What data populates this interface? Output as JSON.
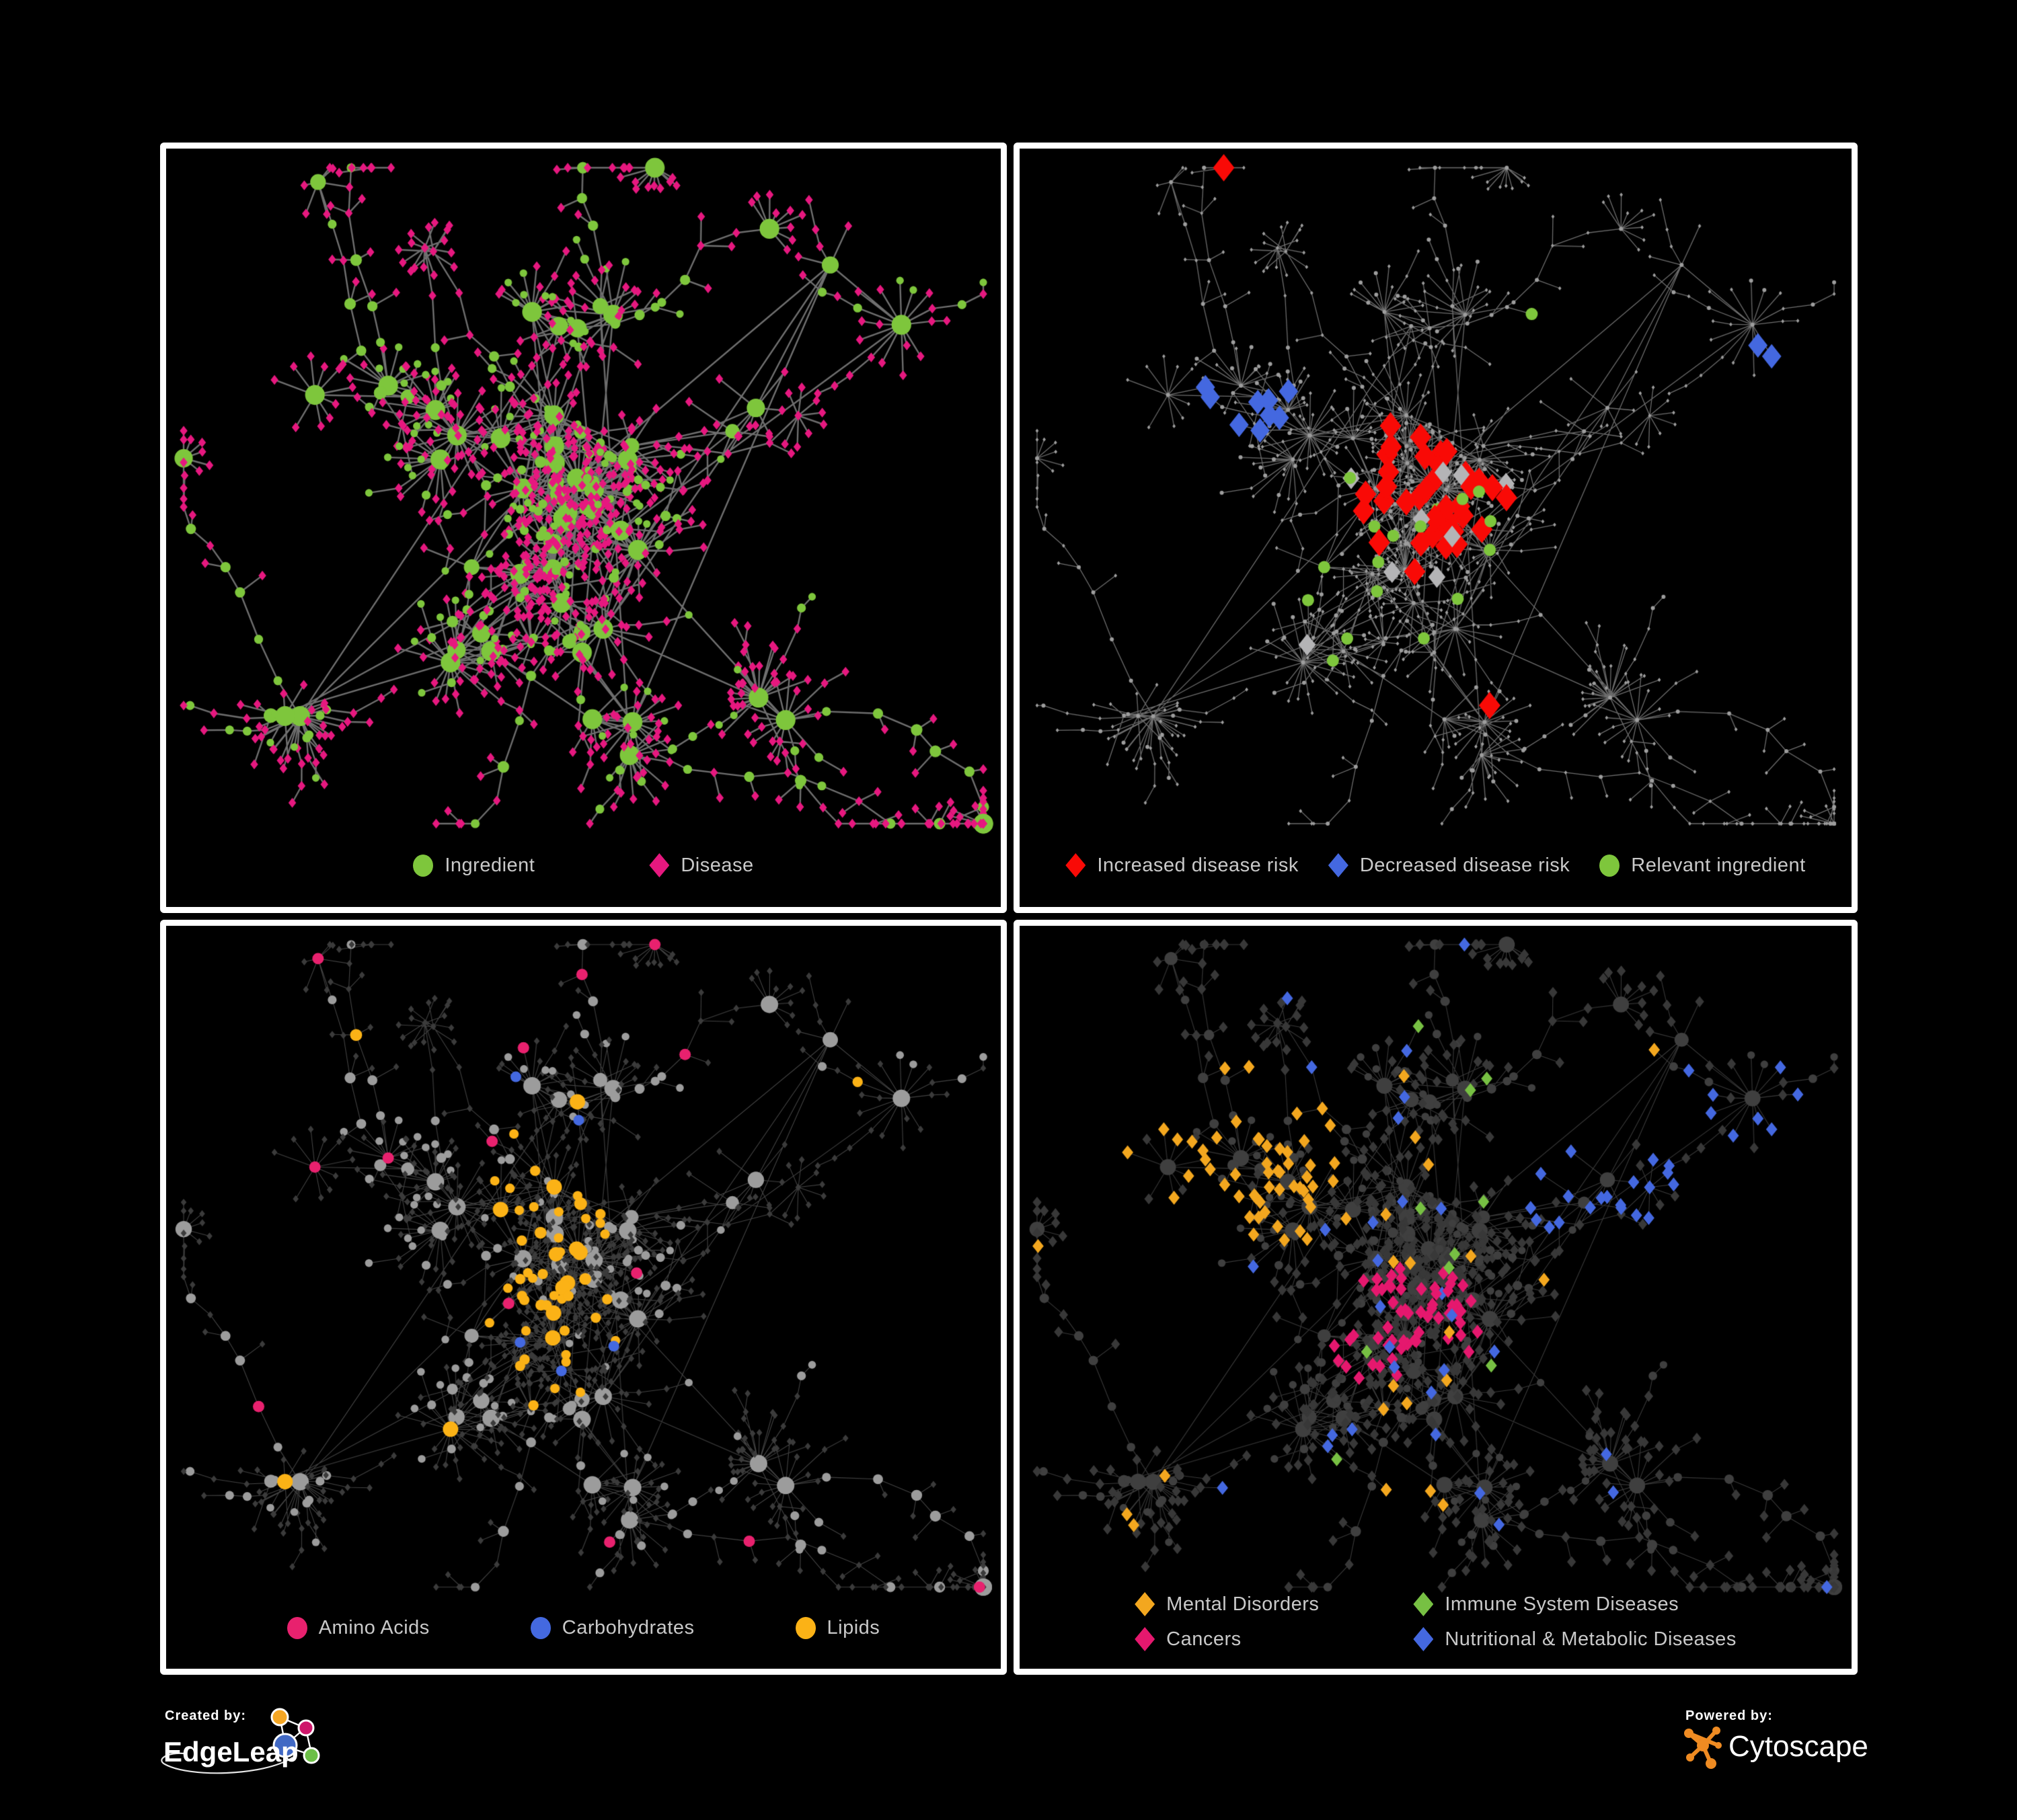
{
  "figure": {
    "background": "#000000",
    "panel_border": "#ffffff",
    "legend_text_color": "#c9c9c9"
  },
  "panels": [
    {
      "name": "ingredient-disease",
      "legend": [
        {
          "label": "Ingredient",
          "shape": "circle",
          "color": "#7EC63C"
        },
        {
          "label": "Disease",
          "shape": "diamond",
          "color": "#E6187F"
        }
      ]
    },
    {
      "name": "disease-risk",
      "legend": [
        {
          "label": "Increased disease risk",
          "shape": "diamond",
          "color": "#F90A06"
        },
        {
          "label": "Decreased disease risk",
          "shape": "diamond",
          "color": "#4468E0"
        },
        {
          "label": "Relevant ingredient",
          "shape": "circle",
          "color": "#7EC63C"
        }
      ]
    },
    {
      "name": "nutrient-class",
      "legend": [
        {
          "label": "Amino Acids",
          "shape": "circle",
          "color": "#E8216E"
        },
        {
          "label": "Carbohydrates",
          "shape": "circle",
          "color": "#4469E0"
        },
        {
          "label": "Lipids",
          "shape": "circle",
          "color": "#FBB216"
        }
      ]
    },
    {
      "name": "disease-class",
      "columns": 2,
      "legend": [
        {
          "label": "Mental Disorders",
          "shape": "diamond",
          "color": "#F3A71F"
        },
        {
          "label": "Immune System Diseases",
          "shape": "diamond",
          "color": "#77C043"
        },
        {
          "label": "Cancers",
          "shape": "diamond",
          "color": "#E5186E"
        },
        {
          "label": "Nutritional & Metabolic Diseases",
          "shape": "diamond",
          "color": "#4468E0"
        }
      ]
    }
  ],
  "neutral_colors": {
    "small_node_gray": "#9d9d9d",
    "no_change_diamond": "#b4b4b6",
    "muted_diamond": "#3b3b3b",
    "muted_circle": "#9c9c9c",
    "dark_diamond": "#383838",
    "dark_circle": "#3f3f3f"
  },
  "footer": {
    "created_by": {
      "label": "Created by:",
      "brand": "EdgeLeap"
    },
    "powered_by": {
      "label": "Powered by:",
      "brand": "Cytoscape"
    }
  },
  "chart_data": {
    "type": "network",
    "layout": "force-directed bipartite ingredient-disease network shown in four synchronized panels on black background",
    "views": [
      {
        "panel": 1,
        "encoding": "Ingredients as green circles, diseases as magenta diamonds",
        "classes": [
          {
            "label": "Ingredient",
            "shape": "circle",
            "color": "#7EC63C"
          },
          {
            "label": "Disease",
            "shape": "diamond",
            "color": "#E6187F"
          }
        ]
      },
      {
        "panel": 2,
        "encoding": "Gray network with highlighted risk associations",
        "classes": [
          {
            "label": "Increased disease risk",
            "shape": "diamond",
            "color": "#F90A06"
          },
          {
            "label": "Decreased disease risk",
            "shape": "diamond",
            "color": "#4468E0"
          },
          {
            "label": "Relevant ingredient",
            "shape": "circle",
            "color": "#7EC63C"
          }
        ]
      },
      {
        "panel": 3,
        "encoding": "Ingredient nodes colored by nutrient class",
        "classes": [
          {
            "label": "Amino Acids",
            "shape": "circle",
            "color": "#E8216E"
          },
          {
            "label": "Carbohydrates",
            "shape": "circle",
            "color": "#4469E0"
          },
          {
            "label": "Lipids",
            "shape": "circle",
            "color": "#FBB216"
          }
        ]
      },
      {
        "panel": 4,
        "encoding": "Disease nodes colored by disease class",
        "classes": [
          {
            "label": "Mental Disorders",
            "shape": "diamond",
            "color": "#F3A71F"
          },
          {
            "label": "Immune System Diseases",
            "shape": "diamond",
            "color": "#77C043"
          },
          {
            "label": "Cancers",
            "shape": "diamond",
            "color": "#E5186E"
          },
          {
            "label": "Nutritional & Metabolic Diseases",
            "shape": "diamond",
            "color": "#4468E0"
          }
        ]
      }
    ]
  }
}
